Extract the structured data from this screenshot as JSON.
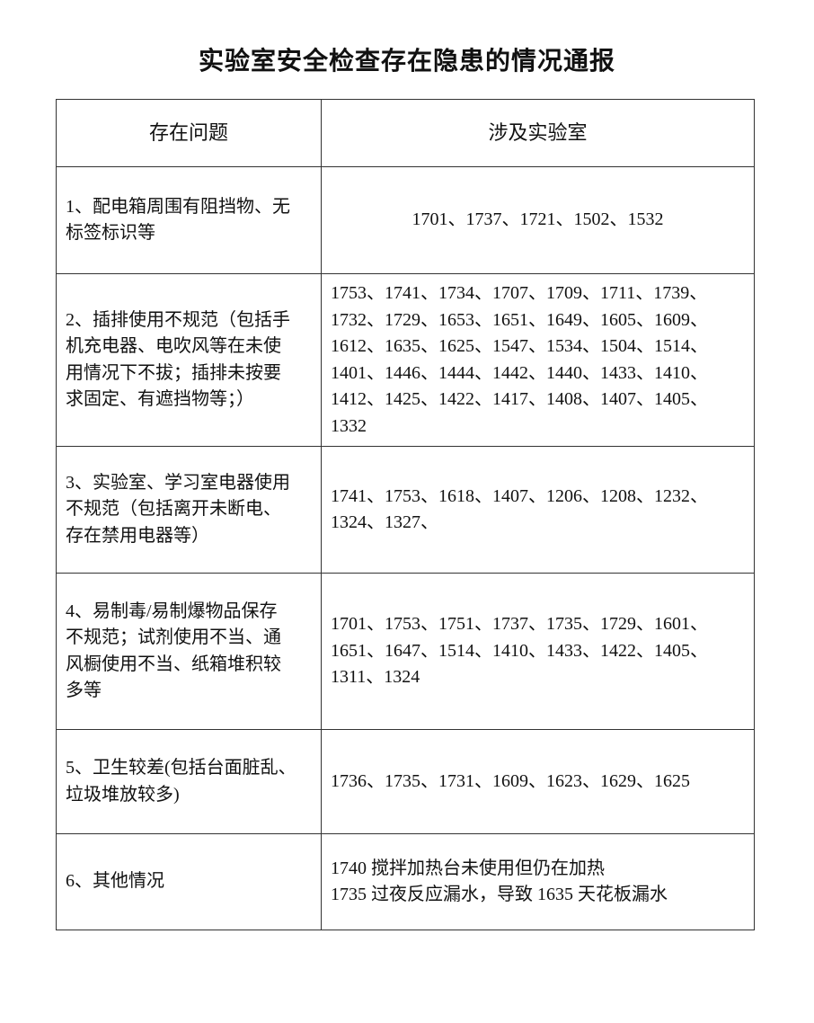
{
  "title": "实验室安全检查存在隐患的情况通报",
  "table": {
    "headers": [
      "存在问题",
      "涉及实验室"
    ],
    "rows": [
      {
        "issue": [
          "1、配电箱周围有阻挡物、无",
          "标签标识等"
        ],
        "labs": [
          "1701、1737、1721、1502、1532"
        ]
      },
      {
        "issue": [
          "2、插排使用不规范（包括手",
          "机充电器、电吹风等在未使",
          "用情况下不拔；插排未按要",
          "求固定、有遮挡物等；）"
        ],
        "labs": [
          "1753、1741、1734、1707、1709、1711、1739、",
          "1732、1729、1653、1651、1649、1605、1609、",
          "1612、1635、1625、1547、1534、1504、1514、",
          "1401、1446、1444、1442、1440、1433、1410、",
          "1412、1425、1422、1417、1408、1407、1405、",
          "1332"
        ]
      },
      {
        "issue": [
          "3、实验室、学习室电器使用",
          "不规范（包括离开未断电、",
          "存在禁用电器等）"
        ],
        "labs": [
          "1741、1753、1618、1407、1206、1208、1232、",
          "1324、1327、"
        ]
      },
      {
        "issue": [
          "4、易制毒/易制爆物品保存",
          "不规范；试剂使用不当、通",
          "风橱使用不当、纸箱堆积较",
          "多等"
        ],
        "labs": [
          "1701、1753、1751、1737、1735、1729、1601、",
          "1651、1647、1514、1410、1433、1422、1405、",
          "1311、1324"
        ]
      },
      {
        "issue": [
          "5、卫生较差(包括台面脏乱、",
          "垃圾堆放较多)"
        ],
        "labs": [
          "1736、1735、1731、1609、1623、1629、1625"
        ]
      },
      {
        "issue": [
          "6、其他情况"
        ],
        "labs": [
          "1740 搅拌加热台未使用但仍在加热",
          "1735 过夜反应漏水，导致 1635 天花板漏水"
        ]
      }
    ]
  }
}
